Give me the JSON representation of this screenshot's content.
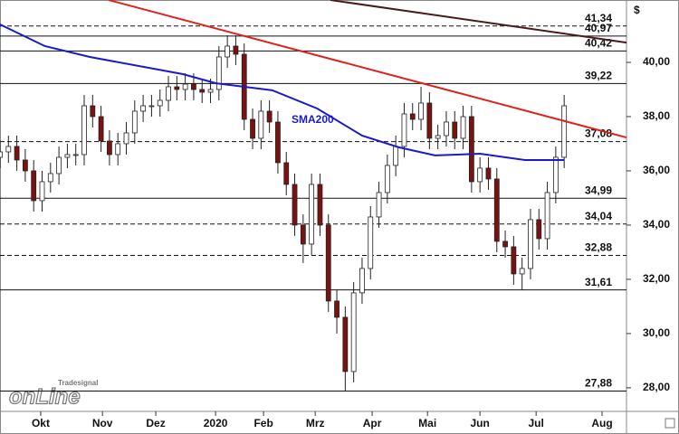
{
  "chart_data": {
    "type": "candlestick",
    "y_axis_label": "$",
    "xlim": [
      0,
      223.2
    ],
    "xticks": [
      {
        "value": 14.5,
        "label": "Okt"
      },
      {
        "value": 36.5,
        "label": "Nov"
      },
      {
        "value": 55.5,
        "label": "Dez"
      },
      {
        "value": 76.8,
        "label": "2020"
      },
      {
        "value": 93.9,
        "label": "Feb"
      },
      {
        "value": 112.3,
        "label": "Mrz"
      },
      {
        "value": 132.6,
        "label": "Apr"
      },
      {
        "value": 152.3,
        "label": "Mai"
      },
      {
        "value": 171,
        "label": "Jun"
      },
      {
        "value": 191,
        "label": "Jul"
      },
      {
        "value": 214.5,
        "label": "Aug"
      }
    ],
    "ylim": [
      27.13,
      42.3
    ],
    "yticks": [
      {
        "value": 28,
        "label": "28,00"
      },
      {
        "value": 30,
        "label": "30,00"
      },
      {
        "value": 32,
        "label": "32,00"
      },
      {
        "value": 34,
        "label": "34,00"
      },
      {
        "value": 36,
        "label": "36,00"
      },
      {
        "value": 38,
        "label": "38,00"
      },
      {
        "value": 40,
        "label": "40,00"
      }
    ],
    "up_color": "#ffffff",
    "down_color": "#7a1212",
    "x": [
      0,
      3,
      6,
      9,
      12,
      15,
      18,
      21,
      24,
      27,
      30,
      33,
      36,
      39,
      42,
      45,
      48,
      51,
      54,
      57,
      60,
      63,
      66,
      69,
      72,
      75,
      78,
      81,
      84,
      87,
      90,
      93,
      96,
      99,
      102,
      105,
      108,
      111,
      114,
      117,
      120,
      123,
      126,
      129,
      132,
      135,
      138,
      141,
      144,
      147,
      150,
      153,
      156,
      159,
      162,
      165,
      168,
      171,
      174,
      177,
      180,
      183,
      186,
      189,
      192,
      195,
      198,
      201
    ],
    "open": [
      36.5,
      36.7,
      36.9,
      36.4,
      36.0,
      34.9,
      35.6,
      35.9,
      36.5,
      36.6,
      36.6,
      38.4,
      38.0,
      37.1,
      36.6,
      37.0,
      37.4,
      38.2,
      38.4,
      38.4,
      38.6,
      39.1,
      39.0,
      39.2,
      39.0,
      38.9,
      39.0,
      40.2,
      40.6,
      40.3,
      37.9,
      37.2,
      38.2,
      37.8,
      36.3,
      35.5,
      34.0,
      33.3,
      35.5,
      34.0,
      31.2,
      30.6,
      28.6,
      31.5,
      32.4,
      34.3,
      35.2,
      36.2,
      36.9,
      38.1,
      37.9,
      38.5,
      37.2,
      37.3,
      37.8,
      37.2,
      38.0,
      35.6,
      36.1,
      35.7,
      33.4,
      33.2,
      32.2,
      32.4,
      34.2,
      33.5,
      35.2,
      36.5
    ],
    "high": [
      37.1,
      37.3,
      37.3,
      36.8,
      36.4,
      36.0,
      36.3,
      36.9,
      37.0,
      37.0,
      38.8,
      38.8,
      38.4,
      37.5,
      37.4,
      37.8,
      38.6,
      38.8,
      38.8,
      39.0,
      39.5,
      39.5,
      39.6,
      39.6,
      39.4,
      39.4,
      40.6,
      41.0,
      41.0,
      40.7,
      38.3,
      38.6,
      38.6,
      38.2,
      36.7,
      35.9,
      34.4,
      35.9,
      35.9,
      34.4,
      31.6,
      31.0,
      31.9,
      32.8,
      34.7,
      35.6,
      36.6,
      37.3,
      38.5,
      38.5,
      39.1,
      38.9,
      37.7,
      38.2,
      38.2,
      38.4,
      38.4,
      36.5,
      36.5,
      36.1,
      33.8,
      33.6,
      32.8,
      34.6,
      34.6,
      35.6,
      36.9,
      38.8
    ],
    "low": [
      36.1,
      36.3,
      36.0,
      35.6,
      34.5,
      34.5,
      35.2,
      35.5,
      36.1,
      36.2,
      36.2,
      37.6,
      36.7,
      36.2,
      36.2,
      36.6,
      37.0,
      37.8,
      38.0,
      38.0,
      38.2,
      38.6,
      38.6,
      38.6,
      38.5,
      38.5,
      38.6,
      39.8,
      39.9,
      37.5,
      36.8,
      36.8,
      37.4,
      35.9,
      35.1,
      33.6,
      32.6,
      32.9,
      33.6,
      30.8,
      30.0,
      27.9,
      28.2,
      31.1,
      32.0,
      33.9,
      34.8,
      35.8,
      36.5,
      37.5,
      37.5,
      36.8,
      36.8,
      36.9,
      36.8,
      36.8,
      35.2,
      35.2,
      35.3,
      33.0,
      32.8,
      31.8,
      31.6,
      32.0,
      33.1,
      33.1,
      34.8,
      36.1
    ],
    "close": [
      36.7,
      36.9,
      36.4,
      36.0,
      34.9,
      35.6,
      35.9,
      36.5,
      36.6,
      36.6,
      38.4,
      38.0,
      37.1,
      36.6,
      37.0,
      37.4,
      38.2,
      38.4,
      38.4,
      38.6,
      39.1,
      39.0,
      39.2,
      39.0,
      38.9,
      39.0,
      40.2,
      40.6,
      40.3,
      37.9,
      37.2,
      38.2,
      37.8,
      36.3,
      35.5,
      34.0,
      33.3,
      35.5,
      34.0,
      31.2,
      30.6,
      28.6,
      31.5,
      32.4,
      34.3,
      35.2,
      36.2,
      36.9,
      38.1,
      37.9,
      38.5,
      37.2,
      37.3,
      37.8,
      37.2,
      38.0,
      35.6,
      36.1,
      35.7,
      33.4,
      33.2,
      32.2,
      32.4,
      34.2,
      33.5,
      35.2,
      36.5,
      38.4
    ],
    "sma": {
      "name": "SMA200",
      "color": "#1a1acc",
      "x": [
        0,
        16,
        32,
        65,
        77,
        97,
        113,
        129,
        142,
        155,
        171,
        187,
        201
      ],
      "values": [
        41.4,
        40.6,
        40.2,
        39.57,
        39.23,
        38.97,
        38.3,
        37.3,
        36.87,
        36.57,
        36.63,
        36.4,
        36.4
      ]
    },
    "trend_lines": [
      {
        "color": "#e0201a",
        "x": [
          38.7,
          223.2
        ],
        "values": [
          42.3,
          37.23
        ]
      },
      {
        "color": "#4a1a1a",
        "x": [
          117.7,
          223.2
        ],
        "values": [
          42.3,
          40.73
        ]
      }
    ],
    "levels": [
      {
        "value": 41.34,
        "label": "41,34",
        "style": "dashed"
      },
      {
        "value": 40.97,
        "label": "40,97",
        "style": "solid"
      },
      {
        "value": 40.42,
        "label": "40,42",
        "style": "solid"
      },
      {
        "value": 39.22,
        "label": "39,22",
        "style": "solid"
      },
      {
        "value": 37.08,
        "label": "37,08",
        "style": "dashed"
      },
      {
        "value": 34.99,
        "label": "34,99",
        "style": "solid"
      },
      {
        "value": 34.04,
        "label": "34,04",
        "style": "dashed"
      },
      {
        "value": 32.88,
        "label": "32,88",
        "style": "dashed"
      },
      {
        "value": 31.61,
        "label": "31,61",
        "style": "solid"
      },
      {
        "value": 27.88,
        "label": "27,88",
        "style": "solid"
      }
    ],
    "logo": {
      "brand": "Tradesignal",
      "text": "onLine"
    }
  }
}
